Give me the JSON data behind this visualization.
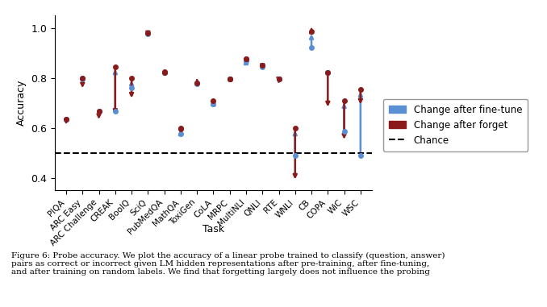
{
  "tasks": [
    "PIQA",
    "ARC Easy",
    "ARC Challenge",
    "CREAK",
    "BoolQ",
    "SciQ",
    "PubMedQA",
    "MathQA",
    "ToxiGen",
    "CoLA",
    "MRPC",
    "MultiNLI",
    "QNLI",
    "RTE",
    "WNLI",
    "CB",
    "COPA",
    "WiC",
    "WSC"
  ],
  "pretrain": [
    0.635,
    0.795,
    0.665,
    0.665,
    0.76,
    0.975,
    0.82,
    0.575,
    0.775,
    0.695,
    0.795,
    0.865,
    0.845,
    0.795,
    0.49,
    0.92,
    0.82,
    0.585,
    0.49
  ],
  "finetune": [
    0.635,
    0.8,
    0.665,
    0.845,
    0.8,
    0.98,
    0.82,
    0.6,
    0.78,
    0.71,
    0.795,
    0.875,
    0.85,
    0.795,
    0.6,
    0.985,
    0.82,
    0.71,
    0.755
  ],
  "forget": [
    0.605,
    0.75,
    0.625,
    0.645,
    0.71,
    0.965,
    0.825,
    0.595,
    0.805,
    0.675,
    0.795,
    0.875,
    0.825,
    0.78,
    0.385,
    1.0,
    0.675,
    0.545,
    0.685
  ],
  "chance": 0.5,
  "ylim": [
    0.35,
    1.05
  ],
  "ylabel": "Accuracy",
  "xlabel": "Task",
  "blue_color": "#5B8FD4",
  "red_color": "#8B1A1A",
  "chance_color": "black",
  "figsize": [
    6.78,
    3.81
  ],
  "dpi": 100,
  "caption": "Figure 6: Probe accuracy. We plot the accuracy of a linear probe trained to classify (question, answer)\npairs as correct or incorrect given LM hidden representations after pre-training, after fine-tuning,\nand after training on random labels. We find that forgetting largely does not influence the probing"
}
